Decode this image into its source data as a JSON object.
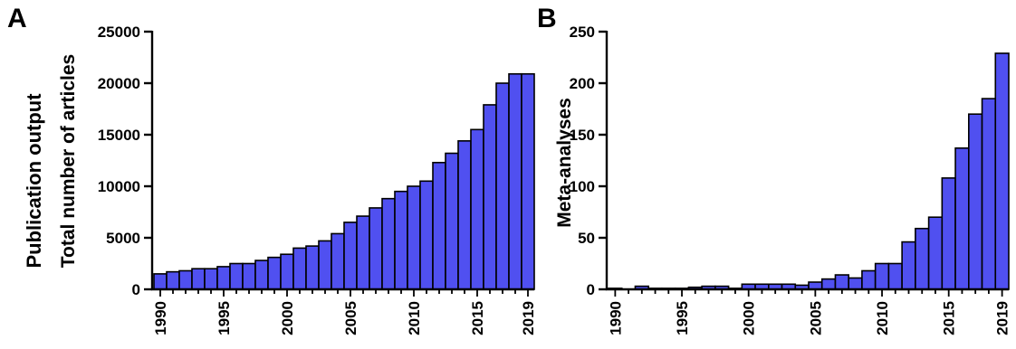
{
  "figure": {
    "side_label": "Publication output"
  },
  "chart_data": [
    {
      "panel": "A",
      "type": "bar",
      "color": "#5050f0",
      "ylabel": "Total number of articles",
      "xlabel": "",
      "ylim": [
        0,
        25000
      ],
      "yticks": [
        0,
        5000,
        10000,
        15000,
        20000,
        25000
      ],
      "xtick_labels": [
        "1990",
        "1995",
        "2000",
        "2005",
        "2010",
        "2015",
        "2019"
      ],
      "categories": [
        1990,
        1991,
        1992,
        1993,
        1994,
        1995,
        1996,
        1997,
        1998,
        1999,
        2000,
        2001,
        2002,
        2003,
        2004,
        2005,
        2006,
        2007,
        2008,
        2009,
        2010,
        2011,
        2012,
        2013,
        2014,
        2015,
        2016,
        2017,
        2018,
        2019
      ],
      "values": [
        1500,
        1700,
        1800,
        2000,
        2000,
        2200,
        2500,
        2500,
        2800,
        3100,
        3400,
        4000,
        4200,
        4700,
        5400,
        6500,
        7100,
        7900,
        8800,
        9500,
        10000,
        10500,
        12300,
        13200,
        14400,
        15500,
        17900,
        20000,
        20900,
        20900
      ],
      "grid": false
    },
    {
      "panel": "B",
      "type": "bar",
      "color": "#5050f0",
      "ylabel": "Meta-analyses",
      "xlabel": "",
      "ylim": [
        0,
        250
      ],
      "yticks": [
        0,
        50,
        100,
        150,
        200,
        250
      ],
      "xtick_labels": [
        "1990",
        "1995",
        "2000",
        "2005",
        "2010",
        "2015",
        "2019"
      ],
      "categories": [
        1990,
        1991,
        1992,
        1993,
        1994,
        1995,
        1996,
        1997,
        1998,
        1999,
        2000,
        2001,
        2002,
        2003,
        2004,
        2005,
        2006,
        2007,
        2008,
        2009,
        2010,
        2011,
        2012,
        2013,
        2014,
        2015,
        2016,
        2017,
        2018,
        2019
      ],
      "values": [
        1,
        0,
        3,
        1,
        1,
        1,
        2,
        3,
        3,
        1,
        5,
        5,
        5,
        5,
        4,
        7,
        10,
        14,
        11,
        18,
        25,
        25,
        46,
        59,
        70,
        108,
        137,
        170,
        185,
        229
      ],
      "grid": false
    }
  ]
}
